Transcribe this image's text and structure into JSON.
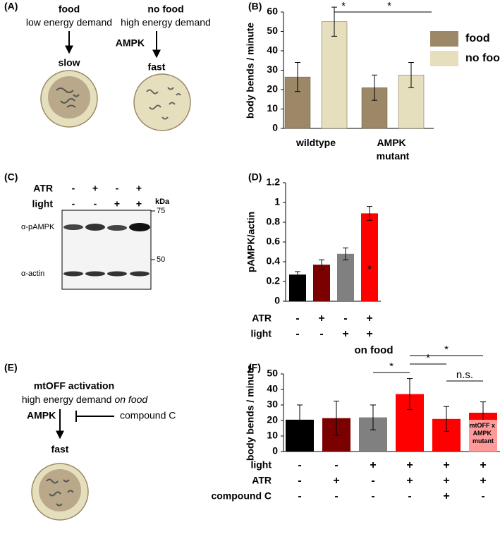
{
  "panel_labels": [
    "(A)",
    "(B)",
    "(C)",
    "(D)",
    "(E)",
    "(F)"
  ],
  "panel_a": {
    "left": {
      "condition": "food",
      "demand": "low energy demand",
      "speed": "slow"
    },
    "right": {
      "condition": "no food",
      "demand": "high energy demand",
      "regulator": "AMPK",
      "speed": "fast"
    }
  },
  "panel_c": {
    "rows": [
      {
        "name": "ATR",
        "signs": [
          "-",
          "+",
          "-",
          "+"
        ]
      },
      {
        "name": "light",
        "signs": [
          "-",
          "-",
          "+",
          "+"
        ]
      }
    ],
    "unit": "kDa",
    "markers": [
      "75",
      "50"
    ],
    "bands": [
      "α-pAMPK",
      "α-actin"
    ]
  },
  "panel_e": {
    "title": "mtOFF activation",
    "demand": "high energy demand",
    "demand_emphasis": "on food",
    "regulator": "AMPK",
    "inhibitor": "compound C",
    "speed": "fast"
  },
  "chart_data": [
    {
      "type": "bar",
      "ylabel": "body bends / minute",
      "categories": [
        "wildtype",
        "AMPK mutant"
      ],
      "series": [
        {
          "name": "food",
          "color": "#9c8866",
          "values": [
            26.5,
            21
          ],
          "errors": [
            7.5,
            6.5
          ]
        },
        {
          "name": "no food",
          "color": "#e6dfbd",
          "values": [
            55,
            27.5
          ],
          "errors": [
            7.5,
            6.5
          ]
        }
      ],
      "ylim": [
        0,
        60
      ],
      "yticks": [
        0,
        10,
        20,
        30,
        40,
        50,
        60
      ],
      "annotations": [
        "*",
        "*"
      ]
    },
    {
      "type": "bar",
      "ylabel": "pAMPK/actin",
      "values": [
        0.27,
        0.37,
        0.48,
        0.89
      ],
      "errors": [
        0.03,
        0.05,
        0.06,
        0.07
      ],
      "colors": [
        "#000000",
        "#7b0000",
        "#808080",
        "#ff0000"
      ],
      "conditions": [
        {
          "name": "ATR",
          "signs": [
            "-",
            "+",
            "-",
            "+"
          ]
        },
        {
          "name": "light",
          "signs": [
            "-",
            "-",
            "+",
            "+"
          ]
        }
      ],
      "ylim": [
        0,
        1.2
      ],
      "yticks": [
        0,
        0.2,
        0.4,
        0.6,
        0.8,
        1,
        1.2
      ],
      "annotations": [
        "*"
      ]
    },
    {
      "type": "bar",
      "title": "on food",
      "ylabel": "body bends / minute",
      "values": [
        20.5,
        21.5,
        22,
        37,
        21,
        25
      ],
      "errors": [
        9.5,
        11,
        8,
        10,
        8,
        7
      ],
      "colors": [
        "#000000",
        "#7b0000",
        "#808080",
        "#ff0000",
        "#ff0000",
        "#ff0000"
      ],
      "conditions": [
        {
          "name": "light",
          "signs": [
            "-",
            "-",
            "+",
            "+",
            "+",
            "+"
          ]
        },
        {
          "name": "ATR",
          "signs": [
            "-",
            "+",
            "-",
            "+",
            "+",
            "+"
          ]
        },
        {
          "name": "compound C",
          "signs": [
            "-",
            "-",
            "-",
            "-",
            "+",
            "-"
          ]
        }
      ],
      "inset_label": "mtOFF x AMPK mutant",
      "inset_color": "#ff9a9a",
      "ylim": [
        0,
        50
      ],
      "yticks": [
        0,
        10,
        20,
        30,
        40,
        50
      ],
      "annotations": [
        "*",
        "*",
        "*",
        "n.s."
      ]
    }
  ]
}
